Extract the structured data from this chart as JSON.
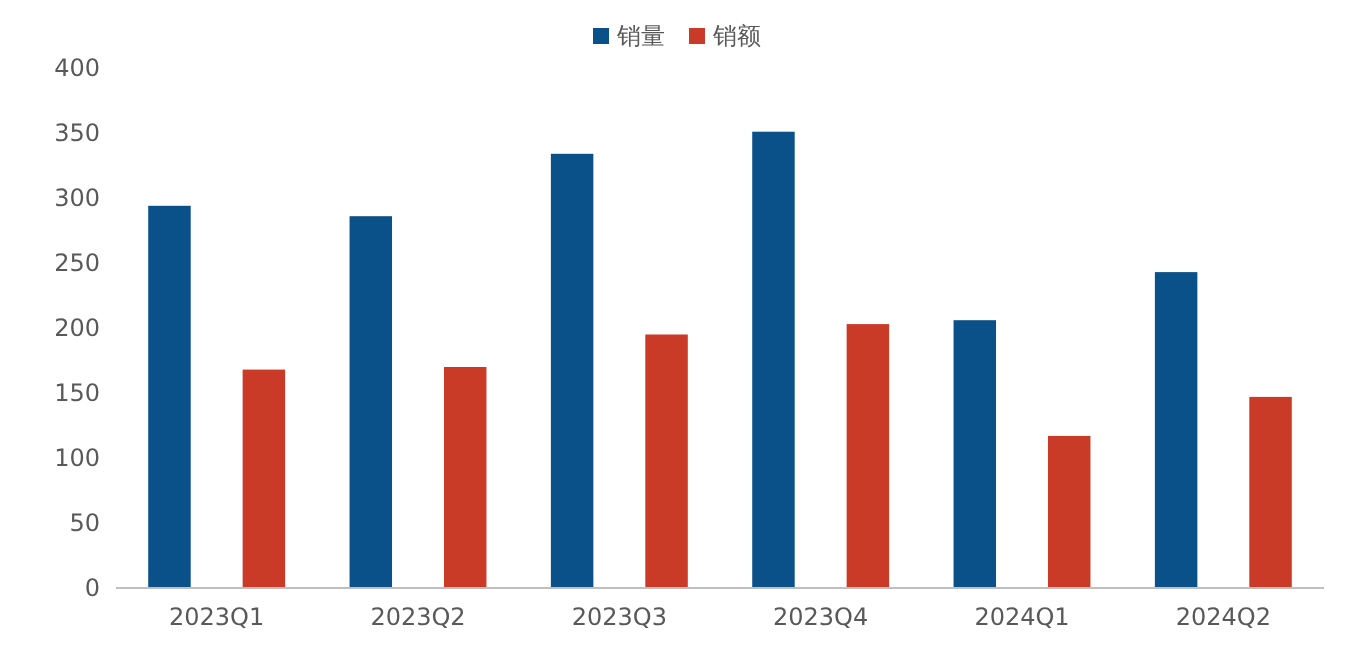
{
  "chart_data": {
    "type": "bar",
    "categories": [
      "2023Q1",
      "2023Q2",
      "2023Q3",
      "2023Q4",
      "2024Q1",
      "2024Q2"
    ],
    "series": [
      {
        "name": "销量",
        "color": "#0b5189",
        "values": [
          294,
          286,
          334,
          351,
          206,
          243
        ]
      },
      {
        "name": "销额",
        "color": "#c93a27",
        "values": [
          168,
          170,
          195,
          203,
          117,
          147
        ]
      }
    ],
    "ylim": [
      0,
      400
    ],
    "yticks": [
      0,
      50,
      100,
      150,
      200,
      250,
      300,
      350,
      400
    ],
    "grid": false,
    "legend": "top"
  }
}
